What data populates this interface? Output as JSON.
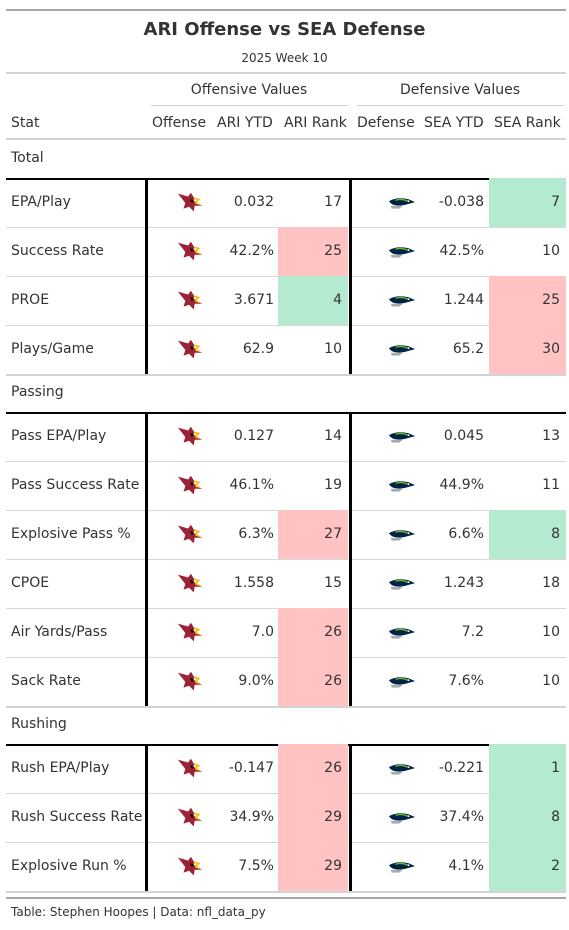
{
  "title": "ARI Offense vs SEA Defense",
  "subtitle": "2025 Week 10",
  "spanners": {
    "offense": "Offensive Values",
    "defense": "Defensive Values"
  },
  "columns": {
    "stat": "Stat",
    "offense": "Offense",
    "ari_ytd": "ARI YTD",
    "ari_rank": "ARI Rank",
    "defense": "Defense",
    "sea_ytd": "SEA YTD",
    "sea_rank": "SEA Rank"
  },
  "colors": {
    "good": "#b3ead0",
    "bad": "#ffc3c3",
    "cardinals_red": "#9b2335",
    "seahawks_navy": "#002244",
    "seahawks_green": "#69be28"
  },
  "icons": {
    "offense_logo": "arizona-cardinals-logo",
    "defense_logo": "seattle-seahawks-logo"
  },
  "groups": [
    {
      "label": "Total",
      "rows": [
        {
          "stat": "EPA/Play",
          "ari_ytd": "0.032",
          "ari_rank": "17",
          "ari_rank_tone": "none",
          "sea_ytd": "-0.038",
          "sea_rank": "7",
          "sea_rank_tone": "good"
        },
        {
          "stat": "Success Rate",
          "ari_ytd": "42.2%",
          "ari_rank": "25",
          "ari_rank_tone": "bad",
          "sea_ytd": "42.5%",
          "sea_rank": "10",
          "sea_rank_tone": "none"
        },
        {
          "stat": "PROE",
          "ari_ytd": "3.671",
          "ari_rank": "4",
          "ari_rank_tone": "good",
          "sea_ytd": "1.244",
          "sea_rank": "25",
          "sea_rank_tone": "bad"
        },
        {
          "stat": "Plays/Game",
          "ari_ytd": "62.9",
          "ari_rank": "10",
          "ari_rank_tone": "none",
          "sea_ytd": "65.2",
          "sea_rank": "30",
          "sea_rank_tone": "bad"
        }
      ]
    },
    {
      "label": "Passing",
      "rows": [
        {
          "stat": "Pass EPA/Play",
          "ari_ytd": "0.127",
          "ari_rank": "14",
          "ari_rank_tone": "none",
          "sea_ytd": "0.045",
          "sea_rank": "13",
          "sea_rank_tone": "none"
        },
        {
          "stat": "Pass Success Rate",
          "ari_ytd": "46.1%",
          "ari_rank": "19",
          "ari_rank_tone": "none",
          "sea_ytd": "44.9%",
          "sea_rank": "11",
          "sea_rank_tone": "none"
        },
        {
          "stat": "Explosive Pass %",
          "ari_ytd": "6.3%",
          "ari_rank": "27",
          "ari_rank_tone": "bad",
          "sea_ytd": "6.6%",
          "sea_rank": "8",
          "sea_rank_tone": "good"
        },
        {
          "stat": "CPOE",
          "ari_ytd": "1.558",
          "ari_rank": "15",
          "ari_rank_tone": "none",
          "sea_ytd": "1.243",
          "sea_rank": "18",
          "sea_rank_tone": "none"
        },
        {
          "stat": "Air Yards/Pass",
          "ari_ytd": "7.0",
          "ari_rank": "26",
          "ari_rank_tone": "bad",
          "sea_ytd": "7.2",
          "sea_rank": "10",
          "sea_rank_tone": "none"
        },
        {
          "stat": "Sack Rate",
          "ari_ytd": "9.0%",
          "ari_rank": "26",
          "ari_rank_tone": "bad",
          "sea_ytd": "7.6%",
          "sea_rank": "10",
          "sea_rank_tone": "none"
        }
      ]
    },
    {
      "label": "Rushing",
      "rows": [
        {
          "stat": "Rush EPA/Play",
          "ari_ytd": "-0.147",
          "ari_rank": "26",
          "ari_rank_tone": "bad",
          "sea_ytd": "-0.221",
          "sea_rank": "1",
          "sea_rank_tone": "good"
        },
        {
          "stat": "Rush Success Rate",
          "ari_ytd": "34.9%",
          "ari_rank": "29",
          "ari_rank_tone": "bad",
          "sea_ytd": "37.4%",
          "sea_rank": "8",
          "sea_rank_tone": "good"
        },
        {
          "stat": "Explosive Run %",
          "ari_ytd": "7.5%",
          "ari_rank": "29",
          "ari_rank_tone": "bad",
          "sea_ytd": "4.1%",
          "sea_rank": "2",
          "sea_rank_tone": "good"
        }
      ]
    }
  ],
  "footer": "Table: Stephen Hoopes | Data: nfl_data_py"
}
